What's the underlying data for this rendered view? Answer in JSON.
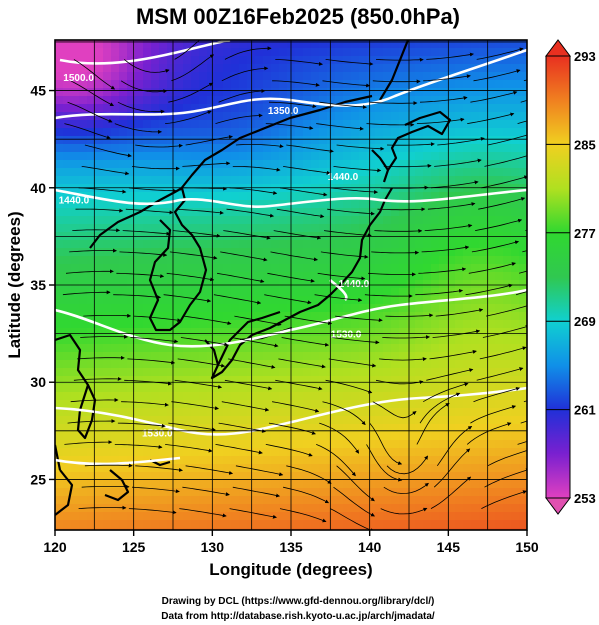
{
  "title": "MSM 00Z16Feb2025 (850.0hPa)",
  "xlabel": "Longitude (degrees)",
  "ylabel": "Latitude  (degrees)",
  "credits": {
    "line1": "Drawing by DCL (https://www.gfd-dennou.org/library/dcl/)",
    "line2": "Data from http://database.rish.kyoto-u.ac.jp/arch/jmadata/"
  },
  "chart_data": {
    "type": "heatmap",
    "xlim": [
      120,
      150
    ],
    "ylim": [
      22.4,
      47.6
    ],
    "x_ticks": [
      120,
      125,
      130,
      135,
      140,
      145,
      150
    ],
    "y_ticks": [
      25,
      30,
      35,
      40,
      45
    ],
    "grid": true,
    "colorbar": {
      "min": 253,
      "max": 293,
      "labels": [
        253,
        261,
        269,
        277,
        285,
        293
      ],
      "colors": [
        "#e040c0",
        "#7a20d0",
        "#2030d8",
        "#1090e8",
        "#10d0d0",
        "#30c850",
        "#30d830",
        "#b0e020",
        "#f0d020",
        "#f08020",
        "#e83020"
      ]
    },
    "contours": [
      {
        "label": "1500.0",
        "lon": 121.5,
        "lat": 45.5
      },
      {
        "label": "1350.0",
        "lon": 134.5,
        "lat": 43.8
      },
      {
        "label": "1440.0",
        "lon": 121.2,
        "lat": 39.2
      },
      {
        "label": "1440.0",
        "lon": 138.3,
        "lat": 40.4
      },
      {
        "label": "1440.0",
        "lon": 139.0,
        "lat": 34.9
      },
      {
        "label": "1530.0",
        "lon": 138.5,
        "lat": 32.3
      },
      {
        "label": "1530.0",
        "lon": 126.5,
        "lat": 27.2
      }
    ]
  }
}
